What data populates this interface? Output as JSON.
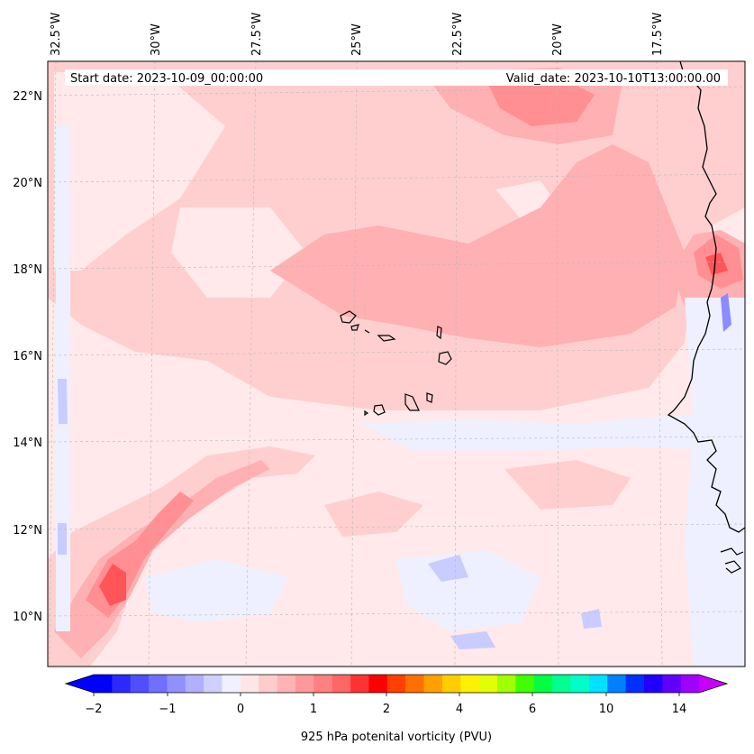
{
  "header": {
    "start_date": "Start date: 2023-10-09_00:00:00",
    "valid_date": "Valid_date: 2023-10-10T13:00:00.00"
  },
  "longitude_labels": [
    "32.5°W",
    "30°W",
    "27.5°W",
    "25°W",
    "22.5°W",
    "20°W",
    "17.5°W"
  ],
  "latitude_labels": [
    "22°N",
    "20°N",
    "18°N",
    "16°N",
    "14°N",
    "12°N",
    "10°N"
  ],
  "colorbar": {
    "label": "925 hPa potenital vorticity (PVU)",
    "tick_labels": [
      "−2",
      "−1",
      "0",
      "1",
      "2",
      "4",
      "6",
      "10",
      "14"
    ],
    "colors": [
      "#0000ff",
      "#2a2aff",
      "#4f4fff",
      "#7070ff",
      "#9090ff",
      "#b0b0ff",
      "#d0d0ff",
      "#f0f0ff",
      "#ffe6e6",
      "#ffcccc",
      "#ffb3b3",
      "#ff9999",
      "#ff8080",
      "#ff6666",
      "#ff3333",
      "#ff0000",
      "#ff4000",
      "#ff7000",
      "#ffa000",
      "#ffcc00",
      "#fff000",
      "#e0ff00",
      "#a0ff00",
      "#40ff00",
      "#00ff40",
      "#00ff90",
      "#00ffc8",
      "#00e0ff",
      "#0080ff",
      "#0030ff",
      "#2000ff",
      "#6000ff",
      "#a000ff"
    ],
    "under_color": "#0000ff",
    "over_color": "#c800ff"
  },
  "field_colors": {
    "background": "#ffe9ea",
    "weak_positive": "#ffcfd0",
    "moderate_positive": "#ffb0b2",
    "strong_positive": "#ff8f92",
    "peak_positive": "#ff5558",
    "weak_negative": "#eef0ff",
    "moderate_negative": "#c8ccff",
    "strong_negative": "#8c8cff"
  }
}
